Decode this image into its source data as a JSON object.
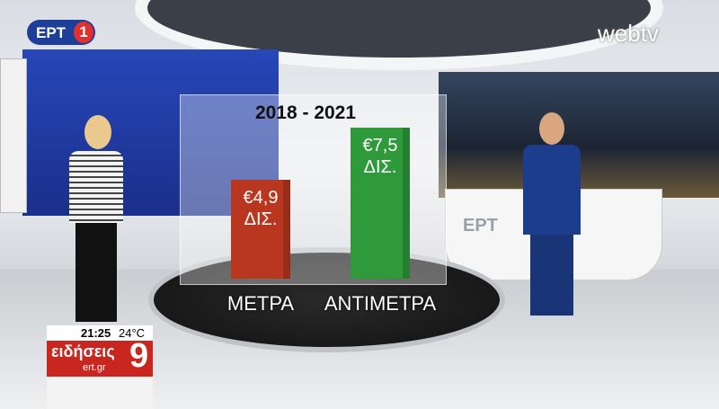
{
  "chart_data": {
    "type": "bar",
    "title": "2018 - 2021",
    "categories": [
      "ΜΕΤΡΑ",
      "ΑΝΤΙΜΕΤΡΑ"
    ],
    "values": [
      4.9,
      7.5
    ],
    "value_labels": [
      "€4,9\nΔΙΣ.",
      "€7,5\nΔΙΣ."
    ],
    "series_colors": [
      "#b9361f",
      "#2f9a3c"
    ],
    "ylim": [
      0,
      8.5
    ]
  },
  "overlay": {
    "logo": "ΕΡΤ",
    "logo_number": "1",
    "web_logo": "webtv",
    "time": "21:25",
    "temperature": "24°C",
    "news": "ειδήσεις",
    "site": "ert.gr",
    "hour": "9",
    "desk": "ΕΡΤ"
  }
}
